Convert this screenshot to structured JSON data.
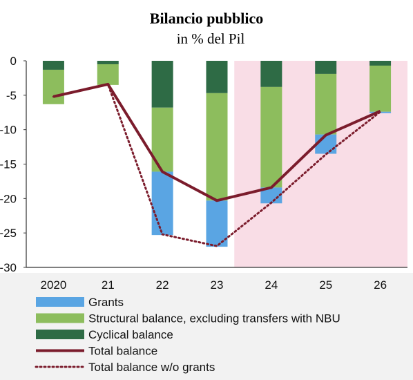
{
  "chart_data": {
    "type": "bar",
    "title": "Bilancio pubblico",
    "subtitle": "in % del Pil",
    "categories": [
      "2020",
      "21",
      "22",
      "23",
      "24",
      "25",
      "26"
    ],
    "ylim": [
      -30,
      0
    ],
    "yticks": [
      0,
      -5,
      -10,
      -15,
      -20,
      -25,
      -30
    ],
    "stacked_bars": [
      {
        "name": "Cyclical balance",
        "color": "#2e6b45",
        "values": [
          -1.3,
          -0.5,
          -6.8,
          -4.7,
          -3.8,
          -1.9,
          -0.7
        ]
      },
      {
        "name": "Structural balance, excluding transfers with NBU",
        "color": "#8dbd5d",
        "values": [
          -5.0,
          -3.0,
          -9.3,
          -15.6,
          -14.6,
          -8.8,
          -6.7
        ]
      },
      {
        "name": "Grants",
        "color": "#5aa5e3",
        "values": [
          0,
          0,
          -9.2,
          -6.7,
          -2.3,
          -2.8,
          -0.2
        ]
      }
    ],
    "lines": [
      {
        "name": "Total balance",
        "color": "#7b1c2c",
        "style": "solid",
        "values": [
          -5.2,
          -3.4,
          -16.1,
          -20.3,
          -18.4,
          -10.8,
          -7.3
        ]
      },
      {
        "name": "Total balance w/o grants",
        "color": "#7b1c2c",
        "style": "dotted",
        "values": [
          -5.2,
          -3.4,
          -25.2,
          -26.9,
          -20.6,
          -13.6,
          -7.4
        ]
      }
    ],
    "shaded_region": {
      "from_category": "24",
      "to_category": "26",
      "color": "#f9dde6"
    },
    "legend": {
      "placement": "bottom",
      "entries": [
        {
          "label": "Grants",
          "kind": "patch",
          "color": "#5aa5e3"
        },
        {
          "label": "Structural balance, excluding transfers with NBU",
          "kind": "patch",
          "color": "#8dbd5d"
        },
        {
          "label": "Cyclical balance",
          "kind": "patch",
          "color": "#2e6b45"
        },
        {
          "label": "Total balance",
          "kind": "solid-line",
          "color": "#7b1c2c"
        },
        {
          "label": "Total balance w/o grants",
          "kind": "dotted-line",
          "color": "#7b1c2c"
        }
      ]
    }
  }
}
